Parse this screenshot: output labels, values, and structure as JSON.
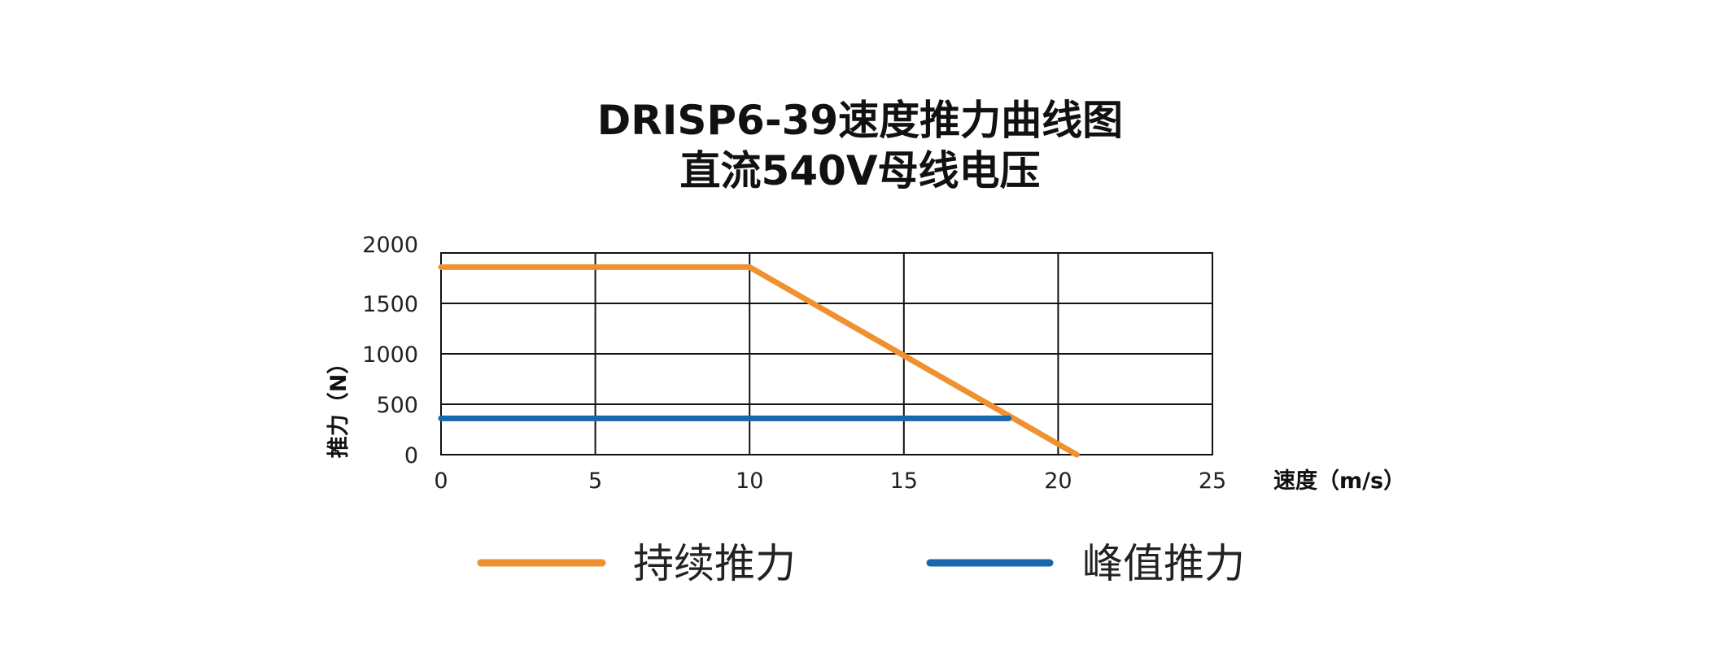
{
  "chart_data": {
    "type": "line",
    "title": "DRISP6-39速度推力曲线图",
    "subtitle": "直流540V母线电压",
    "xlabel": "速度（m/s）",
    "ylabel": "推力（N）",
    "xlim": [
      0,
      25
    ],
    "ylim": [
      0,
      2000
    ],
    "x_ticks": [
      "0",
      "5",
      "10",
      "15",
      "20",
      "25"
    ],
    "y_ticks": [
      "0",
      "500",
      "1000",
      "1500",
      "2000"
    ],
    "grid": true,
    "legend_position": "bottom",
    "series": [
      {
        "name": "持续推力",
        "color": "#F0912F",
        "x": [
          0,
          10,
          20.6
        ],
        "y": [
          1860,
          1860,
          0
        ]
      },
      {
        "name": "峰值推力",
        "color": "#1767AD",
        "x": [
          0,
          18.4
        ],
        "y": [
          360,
          360
        ]
      }
    ]
  }
}
